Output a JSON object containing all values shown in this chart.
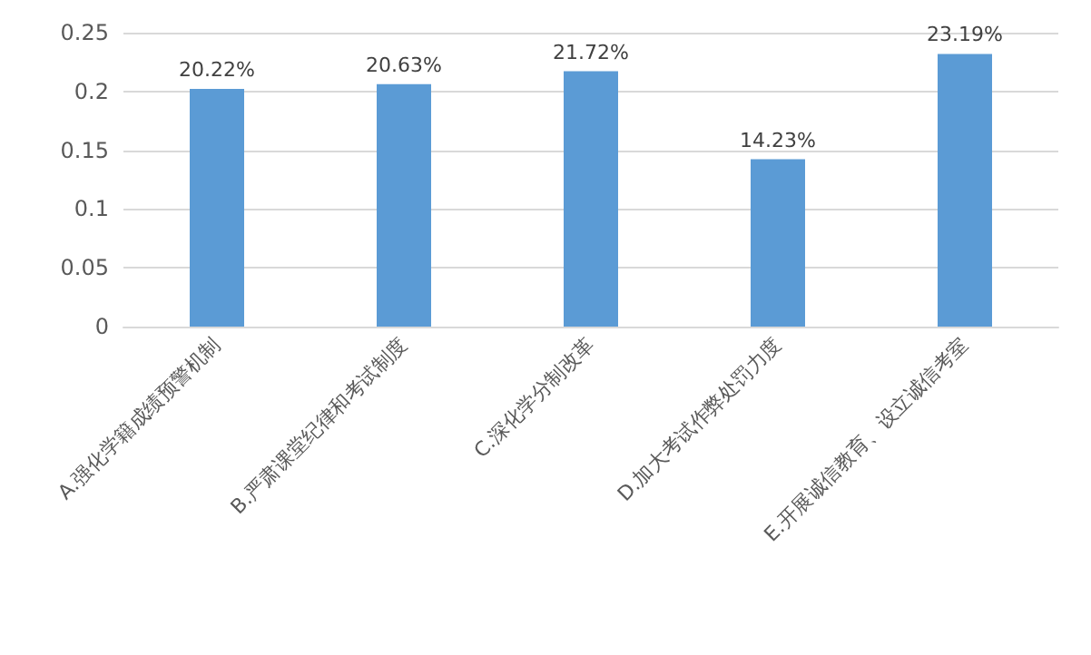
{
  "chart_data": {
    "type": "bar",
    "categories": [
      "A.强化学籍成绩预警机制",
      "B.严肃课堂纪律和考试制度",
      "C.深化学分制改革",
      "D.加大考试作弊处罚力度",
      "E.开展诚信教育、设立诚信考室"
    ],
    "values": [
      0.2022,
      0.2063,
      0.2172,
      0.1423,
      0.2319
    ],
    "value_labels": [
      "20.22%",
      "20.63%",
      "21.72%",
      "14.23%",
      "23.19%"
    ],
    "color": "#5b9bd5",
    "ylim": [
      0,
      0.25
    ],
    "yticks": [
      0,
      0.05,
      0.1,
      0.15,
      0.2,
      0.25
    ],
    "grid": "y"
  }
}
